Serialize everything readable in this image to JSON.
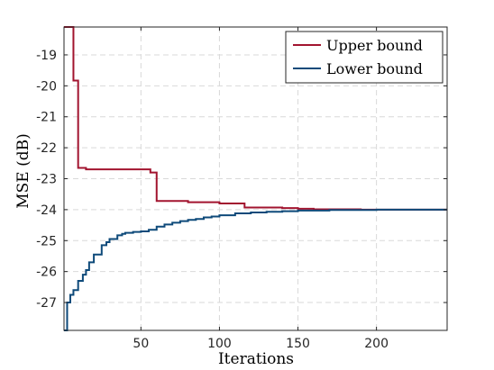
{
  "chart_data": {
    "type": "line",
    "title": "",
    "xlabel": "Iterations",
    "ylabel": "MSE (dB)",
    "xlim": [
      1,
      245
    ],
    "ylim": [
      -27.9,
      -18.1
    ],
    "x_ticks": [
      50,
      100,
      150,
      200
    ],
    "x_tick_labels": [
      "50",
      "100",
      "150",
      "200"
    ],
    "y_ticks": [
      -27,
      -26,
      -25,
      -24,
      -23,
      -22,
      -21,
      -20,
      -19
    ],
    "y_tick_labels": [
      "-27",
      "-26",
      "-25",
      "-24",
      "-23",
      "-22",
      "-21",
      "-20",
      "-19"
    ],
    "grid": true,
    "legend_position": "top-right",
    "series": [
      {
        "name": "Upper bound",
        "color": "#A2142F",
        "x": [
          1,
          7,
          7,
          10,
          10,
          12,
          12,
          15,
          15,
          56,
          56,
          60,
          60,
          80,
          80,
          100,
          100,
          116,
          116,
          140,
          140,
          150,
          150,
          160,
          160,
          190,
          190,
          245
        ],
        "y": [
          -18.1,
          -18.1,
          -19.83,
          -19.83,
          -22.65,
          -22.65,
          -22.65,
          -22.65,
          -22.7,
          -22.7,
          -22.8,
          -22.8,
          -23.72,
          -23.72,
          -23.76,
          -23.76,
          -23.8,
          -23.8,
          -23.93,
          -23.93,
          -23.95,
          -23.95,
          -23.97,
          -23.97,
          -23.99,
          -23.99,
          -24.0,
          -24.0
        ]
      },
      {
        "name": "Lower bound",
        "color": "#0E4A7A",
        "x": [
          1,
          3,
          3,
          5,
          5,
          7,
          7,
          10,
          10,
          13,
          13,
          15,
          15,
          17,
          17,
          20,
          20,
          25,
          25,
          28,
          28,
          30,
          30,
          35,
          35,
          38,
          38,
          40,
          40,
          45,
          45,
          50,
          50,
          55,
          55,
          60,
          60,
          65,
          65,
          70,
          70,
          75,
          75,
          80,
          80,
          85,
          85,
          90,
          90,
          95,
          95,
          100,
          100,
          110,
          110,
          120,
          120,
          130,
          130,
          140,
          140,
          150,
          150,
          170,
          170,
          200,
          200,
          245
        ],
        "y": [
          -27.9,
          -27.9,
          -27.0,
          -27.0,
          -26.75,
          -26.75,
          -26.6,
          -26.6,
          -26.3,
          -26.3,
          -26.1,
          -26.1,
          -25.95,
          -25.95,
          -25.7,
          -25.7,
          -25.45,
          -25.45,
          -25.15,
          -25.15,
          -25.05,
          -25.05,
          -24.95,
          -24.95,
          -24.83,
          -24.83,
          -24.78,
          -24.78,
          -24.75,
          -24.75,
          -24.72,
          -24.72,
          -24.7,
          -24.7,
          -24.65,
          -24.65,
          -24.55,
          -24.55,
          -24.48,
          -24.48,
          -24.42,
          -24.42,
          -24.37,
          -24.37,
          -24.33,
          -24.33,
          -24.3,
          -24.3,
          -24.25,
          -24.25,
          -24.22,
          -24.22,
          -24.18,
          -24.18,
          -24.12,
          -24.12,
          -24.09,
          -24.09,
          -24.07,
          -24.07,
          -24.05,
          -24.05,
          -24.03,
          -24.03,
          -24.01,
          -24.01,
          -24.0,
          -24.0
        ]
      }
    ]
  }
}
